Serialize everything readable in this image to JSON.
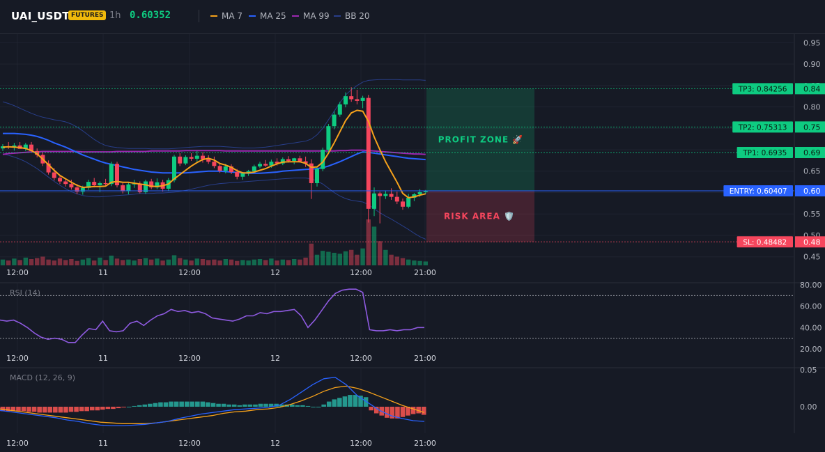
{
  "header": {
    "symbol": "UAI_USDT",
    "badge": "FUTURES",
    "timeframe": "1h",
    "price": "0.60352",
    "legend": [
      {
        "label": "MA 7",
        "color": "#f7a21b"
      },
      {
        "label": "MA 25",
        "color": "#2962ff"
      },
      {
        "label": "MA 99",
        "color": "#9c27b0"
      },
      {
        "label": "BB 20",
        "color": "#283e8a"
      }
    ]
  },
  "colors": {
    "up": "#0ecb81",
    "down": "#f6465d",
    "bg": "#161a25"
  },
  "chart_data": [
    {
      "type": "candlestick",
      "name": "price",
      "x_ticks": [
        "12:00",
        "11",
        "12:00",
        "12",
        "12:00",
        "21:00"
      ],
      "y_ticks": [
        "0.95",
        "0.90",
        "0.85",
        "0.80",
        "0.75",
        "0.70",
        "0.65",
        "0.60",
        "0.55",
        "0.50",
        "0.45"
      ],
      "ylim": [
        0.43,
        0.97
      ],
      "ohlc": [
        [
          0.703,
          0.713,
          0.697,
          0.708
        ],
        [
          0.708,
          0.718,
          0.702,
          0.706
        ],
        [
          0.706,
          0.716,
          0.698,
          0.71
        ],
        [
          0.71,
          0.718,
          0.704,
          0.702
        ],
        [
          0.702,
          0.716,
          0.697,
          0.712
        ],
        [
          0.712,
          0.718,
          0.699,
          0.697
        ],
        [
          0.697,
          0.703,
          0.682,
          0.688
        ],
        [
          0.688,
          0.694,
          0.662,
          0.668
        ],
        [
          0.668,
          0.675,
          0.642,
          0.647
        ],
        [
          0.647,
          0.657,
          0.628,
          0.634
        ],
        [
          0.634,
          0.64,
          0.62,
          0.626
        ],
        [
          0.626,
          0.633,
          0.614,
          0.62
        ],
        [
          0.62,
          0.63,
          0.607,
          0.612
        ],
        [
          0.612,
          0.62,
          0.596,
          0.602
        ],
        [
          0.602,
          0.616,
          0.595,
          0.611
        ],
        [
          0.611,
          0.63,
          0.606,
          0.625
        ],
        [
          0.625,
          0.634,
          0.612,
          0.617
        ],
        [
          0.617,
          0.626,
          0.601,
          0.622
        ],
        [
          0.622,
          0.632,
          0.615,
          0.62
        ],
        [
          0.62,
          0.672,
          0.615,
          0.667
        ],
        [
          0.667,
          0.672,
          0.612,
          0.617
        ],
        [
          0.617,
          0.622,
          0.598,
          0.603
        ],
        [
          0.603,
          0.624,
          0.596,
          0.619
        ],
        [
          0.619,
          0.63,
          0.611,
          0.621
        ],
        [
          0.621,
          0.626,
          0.598,
          0.601
        ],
        [
          0.601,
          0.63,
          0.597,
          0.626
        ],
        [
          0.626,
          0.632,
          0.608,
          0.612
        ],
        [
          0.612,
          0.633,
          0.608,
          0.624
        ],
        [
          0.624,
          0.63,
          0.602,
          0.609
        ],
        [
          0.609,
          0.634,
          0.603,
          0.629
        ],
        [
          0.629,
          0.688,
          0.624,
          0.684
        ],
        [
          0.684,
          0.692,
          0.662,
          0.668
        ],
        [
          0.668,
          0.687,
          0.664,
          0.683
        ],
        [
          0.683,
          0.692,
          0.674,
          0.679
        ],
        [
          0.679,
          0.697,
          0.672,
          0.686
        ],
        [
          0.686,
          0.694,
          0.67,
          0.678
        ],
        [
          0.678,
          0.687,
          0.667,
          0.672
        ],
        [
          0.672,
          0.684,
          0.657,
          0.662
        ],
        [
          0.662,
          0.668,
          0.646,
          0.651
        ],
        [
          0.651,
          0.667,
          0.645,
          0.661
        ],
        [
          0.661,
          0.666,
          0.643,
          0.648
        ],
        [
          0.648,
          0.655,
          0.631,
          0.637
        ],
        [
          0.637,
          0.648,
          0.63,
          0.645
        ],
        [
          0.645,
          0.653,
          0.639,
          0.65
        ],
        [
          0.65,
          0.665,
          0.646,
          0.661
        ],
        [
          0.661,
          0.672,
          0.657,
          0.667
        ],
        [
          0.667,
          0.676,
          0.66,
          0.663
        ],
        [
          0.663,
          0.677,
          0.658,
          0.672
        ],
        [
          0.672,
          0.68,
          0.663,
          0.668
        ],
        [
          0.668,
          0.682,
          0.664,
          0.678
        ],
        [
          0.678,
          0.685,
          0.67,
          0.674
        ],
        [
          0.674,
          0.681,
          0.666,
          0.68
        ],
        [
          0.68,
          0.686,
          0.67,
          0.673
        ],
        [
          0.673,
          0.684,
          0.66,
          0.668
        ],
        [
          0.668,
          0.678,
          0.585,
          0.622
        ],
        [
          0.622,
          0.66,
          0.614,
          0.655
        ],
        [
          0.655,
          0.705,
          0.65,
          0.7
        ],
        [
          0.7,
          0.76,
          0.695,
          0.755
        ],
        [
          0.755,
          0.79,
          0.748,
          0.782
        ],
        [
          0.782,
          0.812,
          0.777,
          0.806
        ],
        [
          0.806,
          0.834,
          0.799,
          0.825
        ],
        [
          0.825,
          0.846,
          0.812,
          0.818
        ],
        [
          0.818,
          0.84,
          0.806,
          0.814
        ],
        [
          0.814,
          0.826,
          0.797,
          0.821
        ],
        [
          0.821,
          0.828,
          0.53,
          0.562
        ],
        [
          0.562,
          0.612,
          0.545,
          0.598
        ],
        [
          0.598,
          0.602,
          0.528,
          0.592
        ],
        [
          0.592,
          0.605,
          0.585,
          0.597
        ],
        [
          0.597,
          0.61,
          0.583,
          0.59
        ],
        [
          0.59,
          0.602,
          0.573,
          0.579
        ],
        [
          0.579,
          0.586,
          0.56,
          0.567
        ],
        [
          0.567,
          0.597,
          0.563,
          0.588
        ],
        [
          0.588,
          0.599,
          0.58,
          0.596
        ],
        [
          0.596,
          0.608,
          0.59,
          0.601
        ],
        [
          0.601,
          0.606,
          0.596,
          0.604
        ]
      ],
      "volume": [
        1.2,
        1.0,
        1.4,
        1.1,
        1.6,
        1.3,
        1.5,
        1.8,
        1.2,
        1.0,
        1.4,
        1.1,
        1.3,
        0.9,
        1.2,
        1.5,
        1.0,
        1.6,
        1.1,
        2.0,
        1.4,
        1.1,
        1.2,
        1.0,
        1.3,
        1.5,
        1.2,
        1.4,
        1.0,
        1.2,
        2.1,
        1.5,
        1.2,
        1.0,
        1.4,
        1.3,
        1.1,
        1.2,
        1.0,
        1.3,
        1.2,
        0.9,
        1.1,
        1.0,
        1.2,
        1.3,
        1.1,
        1.4,
        1.0,
        1.2,
        1.1,
        1.3,
        1.2,
        1.6,
        4.5,
        2.2,
        3.0,
        2.8,
        2.6,
        2.4,
        2.9,
        3.2,
        2.2,
        3.5,
        9.5,
        8.0,
        5.0,
        3.2,
        2.2,
        1.8,
        1.5,
        1.2,
        1.0,
        0.9,
        0.8
      ],
      "ma7": [
        0.706,
        0.707,
        0.706,
        0.705,
        0.703,
        0.698,
        0.69,
        0.678,
        0.665,
        0.652,
        0.64,
        0.632,
        0.624,
        0.617,
        0.612,
        0.613,
        0.614,
        0.614,
        0.615,
        0.624,
        0.626,
        0.624,
        0.624,
        0.622,
        0.62,
        0.618,
        0.615,
        0.614,
        0.616,
        0.62,
        0.632,
        0.642,
        0.652,
        0.662,
        0.67,
        0.677,
        0.68,
        0.676,
        0.668,
        0.664,
        0.659,
        0.651,
        0.646,
        0.646,
        0.648,
        0.652,
        0.656,
        0.662,
        0.667,
        0.671,
        0.672,
        0.672,
        0.672,
        0.668,
        0.659,
        0.66,
        0.671,
        0.692,
        0.716,
        0.742,
        0.768,
        0.786,
        0.792,
        0.79,
        0.766,
        0.73,
        0.7,
        0.672,
        0.648,
        0.624,
        0.598,
        0.588,
        0.59,
        0.594,
        0.597
      ],
      "ma25": [
        0.738,
        0.738,
        0.738,
        0.737,
        0.736,
        0.734,
        0.731,
        0.727,
        0.722,
        0.716,
        0.711,
        0.706,
        0.7,
        0.694,
        0.688,
        0.683,
        0.678,
        0.673,
        0.669,
        0.666,
        0.663,
        0.66,
        0.657,
        0.654,
        0.652,
        0.65,
        0.648,
        0.647,
        0.646,
        0.646,
        0.646,
        0.646,
        0.646,
        0.647,
        0.648,
        0.649,
        0.65,
        0.65,
        0.65,
        0.649,
        0.648,
        0.647,
        0.646,
        0.645,
        0.645,
        0.645,
        0.646,
        0.647,
        0.648,
        0.65,
        0.651,
        0.652,
        0.653,
        0.654,
        0.655,
        0.656,
        0.658,
        0.662,
        0.667,
        0.672,
        0.678,
        0.684,
        0.69,
        0.695,
        0.694,
        0.692,
        0.69,
        0.688,
        0.686,
        0.684,
        0.682,
        0.68,
        0.679,
        0.678,
        0.677
      ],
      "ma99": [
        0.689,
        0.691,
        0.692,
        0.693,
        0.694,
        0.695,
        0.695,
        0.696,
        0.696,
        0.696,
        0.696,
        0.696,
        0.696,
        0.696,
        0.695,
        0.695,
        0.695,
        0.695,
        0.695,
        0.695,
        0.696,
        0.696,
        0.696,
        0.696,
        0.696,
        0.696,
        0.697,
        0.697,
        0.697,
        0.697,
        0.697,
        0.697,
        0.698,
        0.698,
        0.698,
        0.698,
        0.698,
        0.698,
        0.698,
        0.697,
        0.697,
        0.697,
        0.697,
        0.697,
        0.697,
        0.697,
        0.697,
        0.697,
        0.697,
        0.697,
        0.697,
        0.697,
        0.697,
        0.697,
        0.697,
        0.697,
        0.697,
        0.697,
        0.697,
        0.698,
        0.698,
        0.699,
        0.699,
        0.699,
        0.698,
        0.697,
        0.696,
        0.695,
        0.694,
        0.693,
        0.692,
        0.691,
        0.69,
        0.69,
        0.689
      ],
      "bb_upper": [
        0.812,
        0.808,
        0.803,
        0.797,
        0.791,
        0.785,
        0.78,
        0.776,
        0.773,
        0.77,
        0.768,
        0.765,
        0.76,
        0.753,
        0.744,
        0.734,
        0.724,
        0.716,
        0.71,
        0.707,
        0.705,
        0.704,
        0.703,
        0.703,
        0.703,
        0.703,
        0.702,
        0.702,
        0.702,
        0.702,
        0.703,
        0.704,
        0.705,
        0.706,
        0.707,
        0.708,
        0.708,
        0.708,
        0.708,
        0.707,
        0.706,
        0.705,
        0.704,
        0.704,
        0.704,
        0.705,
        0.706,
        0.708,
        0.71,
        0.712,
        0.714,
        0.716,
        0.718,
        0.72,
        0.725,
        0.735,
        0.75,
        0.77,
        0.79,
        0.81,
        0.828,
        0.84,
        0.85,
        0.858,
        0.862,
        0.863,
        0.864,
        0.864,
        0.864,
        0.864,
        0.863,
        0.863,
        0.863,
        0.863,
        0.862
      ],
      "bb_lower": [
        0.69,
        0.687,
        0.683,
        0.678,
        0.672,
        0.664,
        0.656,
        0.646,
        0.636,
        0.626,
        0.617,
        0.609,
        0.602,
        0.597,
        0.593,
        0.591,
        0.59,
        0.59,
        0.591,
        0.592,
        0.593,
        0.594,
        0.595,
        0.596,
        0.598,
        0.598,
        0.598,
        0.599,
        0.599,
        0.6,
        0.601,
        0.603,
        0.605,
        0.608,
        0.611,
        0.614,
        0.617,
        0.619,
        0.621,
        0.622,
        0.623,
        0.624,
        0.625,
        0.626,
        0.627,
        0.628,
        0.629,
        0.63,
        0.631,
        0.632,
        0.633,
        0.634,
        0.634,
        0.634,
        0.632,
        0.627,
        0.62,
        0.61,
        0.6,
        0.592,
        0.586,
        0.582,
        0.58,
        0.578,
        0.572,
        0.562,
        0.553,
        0.545,
        0.538,
        0.53,
        0.522,
        0.514,
        0.505,
        0.497,
        0.491
      ],
      "levels": [
        {
          "label": "TP3: 0.84256",
          "value": 0.84256,
          "tick": "0.84",
          "color": "#0ecb81"
        },
        {
          "label": "TP2: 0.75313",
          "value": 0.75313,
          "tick": "0.75",
          "color": "#0ecb81"
        },
        {
          "label": "TP1: 0.6935",
          "value": 0.6935,
          "tick": "0.69",
          "color": "#0ecb81"
        },
        {
          "label": "ENTRY: 0.60407",
          "value": 0.60407,
          "tick": "0.60",
          "color": "#2962ff"
        },
        {
          "label": "SL: 0.48482",
          "value": 0.48482,
          "tick": "0.48",
          "color": "#f6465d"
        }
      ],
      "zones": {
        "profit_label": "PROFIT ZONE 🚀",
        "risk_label": "RISK AREA 🛡️"
      }
    },
    {
      "type": "line",
      "name": "rsi",
      "title": "RSI (14)",
      "y_ticks": [
        "80.00",
        "60.00",
        "40.00",
        "20.00"
      ],
      "ylim": [
        18,
        82
      ],
      "bands": [
        70,
        30
      ],
      "color": "#8e5ae0",
      "values": [
        47,
        46,
        47,
        44,
        40,
        35,
        31,
        29,
        30,
        29,
        26,
        26,
        33,
        39,
        38,
        46,
        37,
        36,
        37,
        44,
        46,
        42,
        47,
        51,
        53,
        57,
        55,
        56,
        54,
        55,
        53,
        49,
        48,
        47,
        46,
        48,
        51,
        51,
        54,
        53,
        55,
        55,
        56,
        57,
        51,
        40,
        47,
        56,
        65,
        72,
        75,
        76,
        76,
        73,
        38,
        37,
        37,
        38,
        37,
        38,
        38,
        40,
        40
      ]
    },
    {
      "type": "bar+line",
      "name": "macd",
      "title": "MACD (12, 26, 9)",
      "y_ticks": [
        "0.05",
        "0.00"
      ],
      "ylim": [
        -0.036,
        0.053
      ],
      "histogram": [
        -0.006,
        -0.006,
        -0.006,
        -0.006,
        -0.006,
        -0.007,
        -0.007,
        -0.008,
        -0.008,
        -0.008,
        -0.008,
        -0.008,
        -0.008,
        -0.007,
        -0.007,
        -0.006,
        -0.006,
        -0.005,
        -0.005,
        -0.004,
        -0.003,
        -0.003,
        -0.002,
        -0.001,
        0.0,
        0.001,
        0.002,
        0.003,
        0.004,
        0.005,
        0.006,
        0.006,
        0.007,
        0.007,
        0.007,
        0.007,
        0.007,
        0.007,
        0.007,
        0.006,
        0.005,
        0.004,
        0.004,
        0.003,
        0.003,
        0.002,
        0.003,
        0.003,
        0.003,
        0.004,
        0.004,
        0.004,
        0.004,
        0.003,
        0.003,
        0.003,
        0.002,
        0.002,
        0.001,
        0.0,
        -0.0,
        0.003,
        0.007,
        0.01,
        0.012,
        0.014,
        0.016,
        0.016,
        0.015,
        0.013,
        -0.005,
        -0.009,
        -0.012,
        -0.015,
        -0.016,
        -0.016,
        -0.014,
        -0.012,
        -0.01,
        -0.009,
        -0.011
      ],
      "macd_line": [
        -0.005,
        -0.007,
        -0.009,
        -0.011,
        -0.013,
        -0.015,
        -0.018,
        -0.02,
        -0.023,
        -0.025,
        -0.026,
        -0.026,
        -0.025,
        -0.024,
        -0.022,
        -0.02,
        -0.016,
        -0.013,
        -0.01,
        -0.008,
        -0.006,
        -0.004,
        -0.003,
        -0.002,
        -0.001,
        0.002,
        0.01,
        0.02,
        0.03,
        0.038,
        0.04,
        0.03,
        0.015,
        0.005,
        -0.005,
        -0.012,
        -0.016,
        -0.019,
        -0.02
      ],
      "signal_line": [
        -0.003,
        -0.005,
        -0.007,
        -0.009,
        -0.011,
        -0.013,
        -0.015,
        -0.017,
        -0.019,
        -0.021,
        -0.022,
        -0.023,
        -0.023,
        -0.023,
        -0.022,
        -0.02,
        -0.018,
        -0.016,
        -0.014,
        -0.012,
        -0.009,
        -0.007,
        -0.006,
        -0.004,
        -0.003,
        -0.001,
        0.003,
        0.008,
        0.014,
        0.021,
        0.026,
        0.028,
        0.025,
        0.02,
        0.014,
        0.008,
        0.002,
        -0.003,
        -0.008
      ]
    }
  ]
}
